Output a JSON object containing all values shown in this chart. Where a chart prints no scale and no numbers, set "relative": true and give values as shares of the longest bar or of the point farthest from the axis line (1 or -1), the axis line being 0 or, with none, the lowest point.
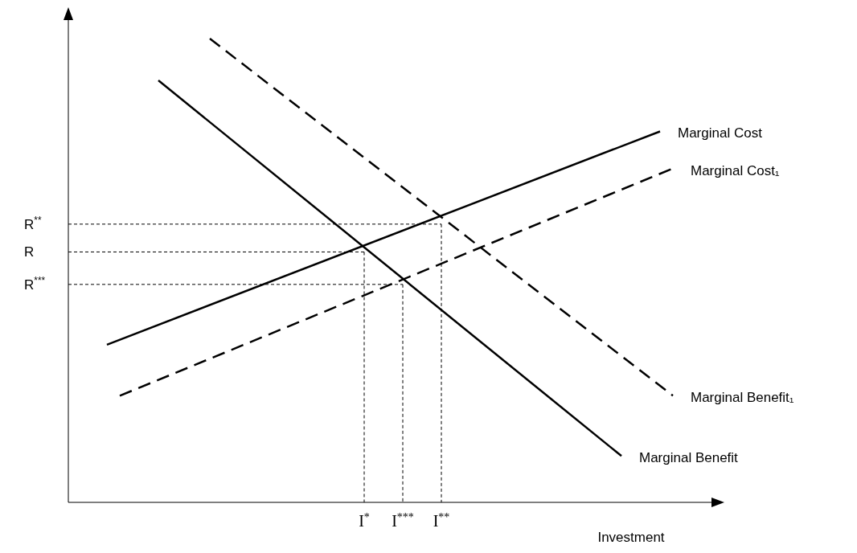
{
  "chart_data": {
    "type": "line",
    "xlabel": "Investment",
    "relative": true,
    "categories": [
      null,
      null,
      null,
      null,
      null,
      null,
      null,
      null,
      null,
      null,
      null,
      null,
      null,
      null,
      null,
      null,
      null,
      null,
      null,
      null,
      null,
      null,
      null,
      "I$^{*}$",
      null,
      null,
      "I$^{***}$",
      null,
      null,
      "I$^{**}$",
      null,
      null,
      null,
      null,
      null,
      null,
      null,
      null,
      null,
      null,
      null,
      null,
      null,
      null,
      null,
      null,
      null,
      null,
      null,
      null,
      null
    ],
    "grid": false,
    "legend": false,
    "series": [
      {
        "name": "Marginal Cost",
        "color": "#000000",
        "line_style": "solid",
        "values": [
          null,
          null,
          null,
          0.34,
          null,
          null,
          null,
          null,
          null,
          null,
          null,
          null,
          null,
          null,
          null,
          null,
          null,
          null,
          null,
          null,
          null,
          null,
          null,
          null,
          null,
          null,
          null,
          null,
          null,
          null,
          null,
          null,
          null,
          null,
          null,
          null,
          null,
          null,
          null,
          null,
          null,
          null,
          null,
          null,
          null,
          null,
          0.8,
          null,
          null,
          null,
          null
        ]
      },
      {
        "name": "Marginal Cost₁",
        "color": "#000000",
        "line_style": "dashed",
        "values": [
          null,
          null,
          null,
          null,
          0.23,
          null,
          null,
          null,
          null,
          null,
          null,
          null,
          null,
          null,
          null,
          null,
          null,
          null,
          null,
          null,
          null,
          null,
          null,
          null,
          null,
          null,
          null,
          null,
          null,
          null,
          null,
          null,
          null,
          null,
          null,
          null,
          null,
          null,
          null,
          null,
          null,
          null,
          null,
          null,
          null,
          null,
          null,
          0.72,
          null,
          null,
          null
        ]
      },
      {
        "name": "Marginal Benefit₁",
        "color": "#000000",
        "line_style": "dashed",
        "values": [
          null,
          null,
          null,
          null,
          null,
          null,
          null,
          null,
          null,
          null,
          null,
          1,
          null,
          null,
          null,
          null,
          null,
          null,
          null,
          null,
          null,
          null,
          null,
          null,
          null,
          null,
          null,
          null,
          null,
          null,
          null,
          null,
          null,
          null,
          null,
          null,
          null,
          null,
          null,
          null,
          null,
          null,
          null,
          null,
          null,
          null,
          null,
          0.23,
          null,
          null,
          null
        ]
      },
      {
        "name": "Marginal Benefit",
        "color": "#000000",
        "line_style": "solid",
        "values": [
          null,
          null,
          null,
          null,
          null,
          null,
          null,
          0.91,
          null,
          null,
          null,
          null,
          null,
          null,
          null,
          null,
          null,
          null,
          null,
          null,
          null,
          null,
          null,
          null,
          null,
          null,
          null,
          null,
          null,
          null,
          null,
          null,
          null,
          null,
          null,
          null,
          null,
          null,
          null,
          null,
          null,
          null,
          null,
          0.1,
          null,
          null,
          null,
          null,
          null,
          null,
          null
        ]
      },
      {
        "name": "R$^{**}$",
        "color": "#000000",
        "line_style": "dotted",
        "values": [
          0.6,
          null,
          null,
          null,
          null,
          null,
          null,
          null,
          null,
          null,
          null,
          null,
          null,
          null,
          null,
          null,
          null,
          null,
          null,
          null,
          null,
          null,
          null,
          null,
          null,
          null,
          null,
          null,
          null,
          0.6,
          null,
          null,
          null,
          null,
          null,
          null,
          null,
          null,
          null,
          null,
          null,
          null,
          null,
          null,
          null,
          null,
          null,
          null,
          null,
          null,
          null
        ]
      },
      {
        "name": "R",
        "color": "#000000",
        "line_style": "dotted",
        "values": [
          0.54,
          null,
          null,
          null,
          null,
          null,
          null,
          null,
          null,
          null,
          null,
          null,
          null,
          null,
          null,
          null,
          null,
          null,
          null,
          null,
          null,
          null,
          null,
          0.54,
          null,
          null,
          null,
          null,
          null,
          null,
          null,
          null,
          null,
          null,
          null,
          null,
          null,
          null,
          null,
          null,
          null,
          null,
          null,
          null,
          null,
          null,
          null,
          null,
          null,
          null,
          null
        ]
      },
      {
        "name": "R$^{***}$",
        "color": "#000000",
        "line_style": "dotted",
        "values": [
          0.47,
          null,
          null,
          null,
          null,
          null,
          null,
          null,
          null,
          null,
          null,
          null,
          null,
          null,
          null,
          null,
          null,
          null,
          null,
          null,
          null,
          null,
          null,
          null,
          null,
          null,
          0.47,
          null,
          null,
          null,
          null,
          null,
          null,
          null,
          null,
          null,
          null,
          null,
          null,
          null,
          null,
          null,
          null,
          null,
          null,
          null,
          null,
          null,
          null,
          null,
          null
        ]
      },
      {
        "color": "#000000",
        "line_style": "dotted",
        "x": [
          "I$^{**}$",
          "I$^{**}$"
        ],
        "values": [
          0.6,
          0
        ]
      },
      {
        "color": "#000000",
        "line_style": "dotted",
        "x": [
          "I$^{*}$",
          "I$^{*}$"
        ],
        "values": [
          0.54,
          0
        ]
      },
      {
        "color": "#000000",
        "line_style": "dotted",
        "x": [
          "I$^{***}$",
          "I$^{***}$"
        ],
        "values": [
          0.47,
          0
        ]
      }
    ]
  }
}
